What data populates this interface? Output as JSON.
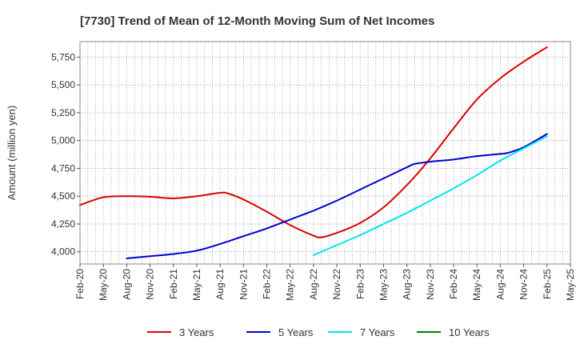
{
  "chart_data": {
    "type": "line",
    "title": "[7730]  Trend of Mean of 12-Month Moving Sum of Net Incomes",
    "xlabel": "",
    "ylabel": "Amount (million yen)",
    "ylim": [
      3890,
      5890
    ],
    "yticks": [
      4000,
      4250,
      4500,
      4750,
      5000,
      5250,
      5500,
      5750
    ],
    "ytick_labels": [
      "4,000",
      "4,250",
      "4,500",
      "4,750",
      "5,000",
      "5,250",
      "5,500",
      "5,750"
    ],
    "xticks": [
      "Feb-20",
      "May-20",
      "Aug-20",
      "Nov-20",
      "Feb-21",
      "May-21",
      "Aug-21",
      "Nov-21",
      "Feb-22",
      "May-22",
      "Aug-22",
      "Nov-22",
      "Feb-23",
      "May-23",
      "Aug-23",
      "Nov-23",
      "Feb-24",
      "May-24",
      "Aug-24",
      "Nov-24",
      "Feb-25",
      "May-25"
    ],
    "grid": true,
    "legend_position": "bottom",
    "series": [
      {
        "name": "3 Years",
        "color": "#dd0000",
        "x": [
          "Feb-20",
          "May-20",
          "Aug-20",
          "Nov-20",
          "Feb-21",
          "May-21",
          "Aug-21",
          "Sep-21",
          "Nov-21",
          "Feb-22",
          "May-22",
          "Aug-22",
          "Sep-22",
          "Nov-22",
          "Feb-23",
          "May-23",
          "Aug-23",
          "Nov-23",
          "Feb-24",
          "May-24",
          "Aug-24",
          "Nov-24",
          "Feb-25"
        ],
        "values": [
          4420,
          4490,
          4500,
          4495,
          4480,
          4500,
          4530,
          4525,
          4470,
          4360,
          4240,
          4145,
          4130,
          4170,
          4260,
          4400,
          4600,
          4840,
          5110,
          5370,
          5560,
          5710,
          5840
        ]
      },
      {
        "name": "5 Years",
        "color": "#0000cc",
        "x": [
          "Aug-20",
          "Nov-20",
          "Feb-21",
          "May-21",
          "Aug-21",
          "Nov-21",
          "Feb-22",
          "May-22",
          "Aug-22",
          "Nov-22",
          "Feb-23",
          "May-23",
          "Aug-23",
          "Sep-23",
          "Nov-23",
          "Feb-24",
          "May-24",
          "Aug-24",
          "Sep-24",
          "Nov-24",
          "Feb-25"
        ],
        "values": [
          3940,
          3960,
          3980,
          4010,
          4070,
          4140,
          4210,
          4290,
          4370,
          4460,
          4560,
          4660,
          4760,
          4790,
          4810,
          4830,
          4860,
          4880,
          4890,
          4940,
          5060
        ]
      },
      {
        "name": "7 Years",
        "color": "#00e5ee",
        "x": [
          "Aug-22",
          "Nov-22",
          "Feb-23",
          "May-23",
          "Aug-23",
          "Nov-23",
          "Feb-24",
          "May-24",
          "Aug-24",
          "Nov-24",
          "Feb-25"
        ],
        "values": [
          3970,
          4060,
          4150,
          4250,
          4350,
          4460,
          4570,
          4690,
          4820,
          4930,
          5040
        ]
      },
      {
        "name": "10 Years",
        "color": "#008000",
        "x": [],
        "values": []
      }
    ]
  }
}
